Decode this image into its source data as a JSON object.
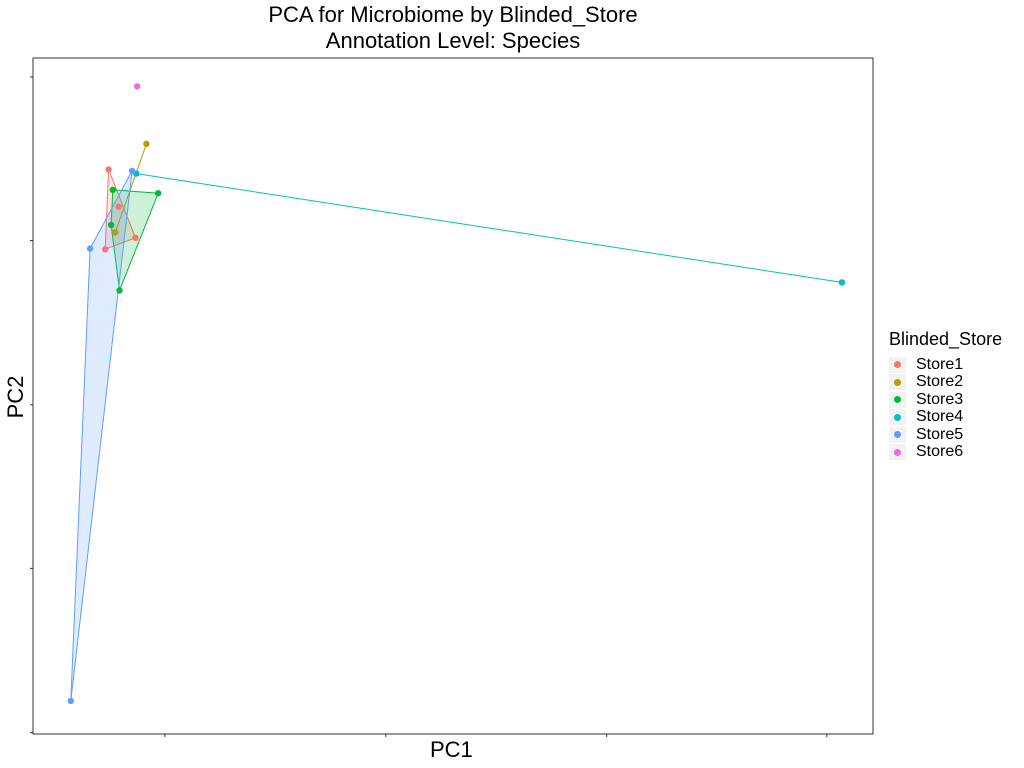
{
  "chart_data": {
    "type": "scatter",
    "title": "PCA for Microbiome by Blinded_Store",
    "subtitle": "Annotation Level: Species",
    "xlabel": "PC1",
    "ylabel": "PC2",
    "xlim": [
      0,
      1
    ],
    "ylim": [
      0,
      1
    ],
    "grid": false,
    "legend": {
      "title": "Blinded_Store",
      "placement": "right"
    },
    "hulls": true,
    "series": [
      {
        "name": "Store1",
        "color": "#F8766D",
        "points": [
          [
            0.09,
            0.835
          ],
          [
            0.102,
            0.78
          ],
          [
            0.122,
            0.734
          ],
          [
            0.086,
            0.717
          ]
        ]
      },
      {
        "name": "Store2",
        "color": "#B79F00",
        "points": [
          [
            0.135,
            0.873
          ],
          [
            0.098,
            0.742
          ]
        ]
      },
      {
        "name": "Store3",
        "color": "#00BA38",
        "points": [
          [
            0.095,
            0.805
          ],
          [
            0.149,
            0.8
          ],
          [
            0.093,
            0.753
          ],
          [
            0.103,
            0.656
          ]
        ]
      },
      {
        "name": "Store4",
        "color": "#00BFC4",
        "points": [
          [
            0.123,
            0.829
          ],
          [
            0.963,
            0.668
          ]
        ]
      },
      {
        "name": "Store5",
        "color": "#619CFF",
        "points": [
          [
            0.118,
            0.833
          ],
          [
            0.068,
            0.718
          ],
          [
            0.045,
            0.049
          ]
        ]
      },
      {
        "name": "Store6",
        "color": "#F564E3",
        "points": [
          [
            0.124,
            0.958
          ]
        ]
      }
    ]
  }
}
